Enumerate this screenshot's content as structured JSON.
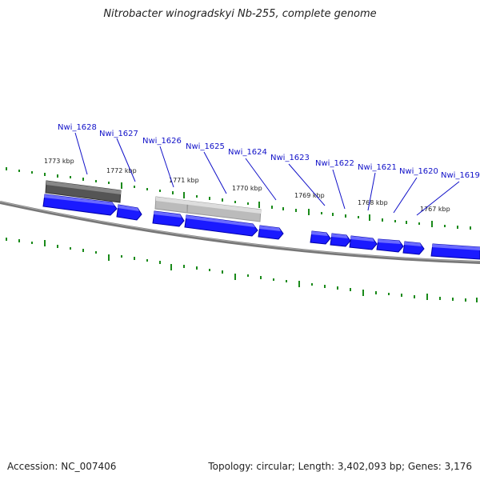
{
  "title": "Nitrobacter winogradskyi Nb-255, complete genome",
  "footer": {
    "accession": "Accession: NC_007406",
    "summary": "Topology: circular; Length: 3,402,093 bp; Genes: 3,176"
  },
  "colors": {
    "gene_fill": "#1a1aff",
    "gene_label": "#1010c8",
    "backbone": "#777777",
    "tick": "#1a8a1a",
    "cds_dark": "#555555",
    "cds_light": "#bbbbbb"
  },
  "genes": [
    {
      "name": "Nwi_1628"
    },
    {
      "name": "Nwi_1627"
    },
    {
      "name": "Nwi_1626"
    },
    {
      "name": "Nwi_1625"
    },
    {
      "name": "Nwi_1624"
    },
    {
      "name": "Nwi_1623"
    },
    {
      "name": "Nwi_1622"
    },
    {
      "name": "Nwi_1621"
    },
    {
      "name": "Nwi_1620"
    },
    {
      "name": "Nwi_1619"
    }
  ],
  "ticks": [
    "1773 kbp",
    "1772 kbp",
    "1771 kbp",
    "1770 kbp",
    "1769 kbp",
    "1768 kbp",
    "1767 kbp"
  ]
}
